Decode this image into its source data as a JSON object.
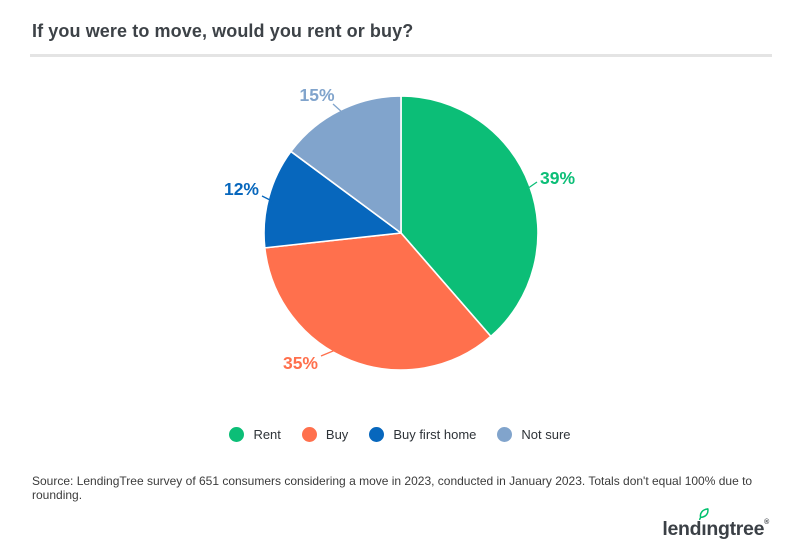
{
  "header": {
    "title": "If you were to move, would you rent or buy?"
  },
  "chart_data": {
    "type": "pie",
    "title": "If you were to move, would you rent or buy?",
    "categories": [
      "Rent",
      "Buy",
      "Buy first home",
      "Not sure"
    ],
    "values": [
      39,
      35,
      12,
      15
    ],
    "labels": [
      "39%",
      "35%",
      "12%",
      "15%"
    ],
    "colors": [
      "#0cbe77",
      "#ff704d",
      "#0767bd",
      "#81a4cc"
    ],
    "start_angle_deg": 0,
    "direction": "clockwise",
    "legend_position": "bottom"
  },
  "footer": {
    "source": "Source: LendingTree survey of 651 consumers considering a move in 2023, conducted in January 2023. Totals don't equal 100% due to rounding.",
    "logo": {
      "text": "lendingtree",
      "registered_mark": "®"
    },
    "leaf_color": "#00c06d"
  }
}
